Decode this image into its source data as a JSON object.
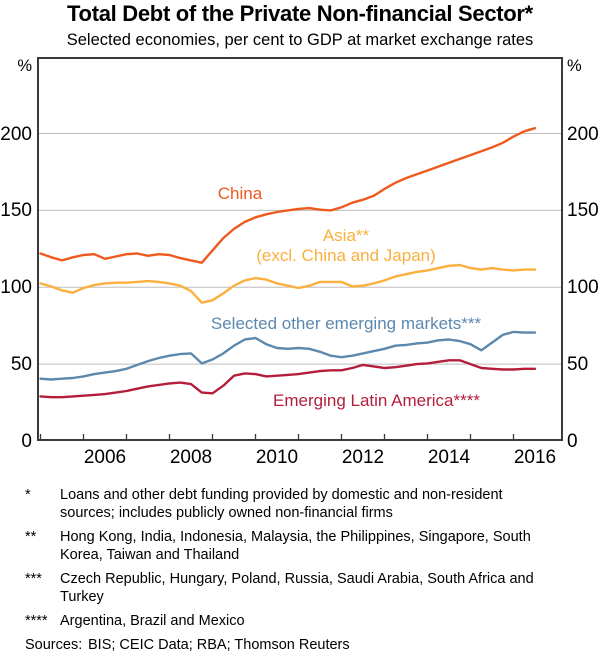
{
  "title": "Total Debt of the Private Non-financial Sector*",
  "subtitle": "Selected economies, per cent to GDP at market exchange rates",
  "chart_data": {
    "type": "line",
    "title": "Total Debt of the Private Non-financial Sector",
    "xlabel": "",
    "ylabel": "per cent to GDP",
    "y_unit": "%",
    "x_start": 2005.0,
    "x_step": 0.25,
    "x_axis": {
      "min": 2004.9,
      "max": 2017.1,
      "tick_years": [
        2005,
        2006,
        2007,
        2008,
        2009,
        2010,
        2011,
        2012,
        2013,
        2014,
        2015,
        2016
      ],
      "label_years": [
        2006,
        2008,
        2010,
        2012,
        2014,
        2016
      ]
    },
    "y_axis": {
      "min": 0,
      "max": 250,
      "ticks": [
        0,
        50,
        100,
        150,
        200
      ],
      "gridlines": [
        50,
        100,
        150,
        200
      ],
      "grid": true
    },
    "legend_position": "inline-labels",
    "series": [
      {
        "name": "china",
        "label": "China",
        "color": "#EE5A1E",
        "values": [
          122,
          119.5,
          117.5,
          119.5,
          121,
          121.5,
          118.5,
          120,
          121.5,
          122,
          120.5,
          121.5,
          121,
          119,
          117.5,
          116,
          124,
          132,
          138,
          142.5,
          145.5,
          147.5,
          149,
          150,
          151,
          151.5,
          150.5,
          150,
          152,
          155,
          157,
          159.5,
          164,
          168,
          171,
          173.5,
          176,
          178.5,
          181,
          183.5,
          186,
          188.5,
          191,
          194,
          198,
          201.5,
          203.5
        ]
      },
      {
        "name": "asia-excl-china-japan",
        "label_line1": "Asia**",
        "label_line2": "(excl. China and Japan)",
        "color": "#FBAF3C",
        "values": [
          102.5,
          100.5,
          98,
          96.5,
          99.5,
          101.5,
          102.5,
          103,
          103,
          103.5,
          104,
          103.5,
          102.5,
          101,
          97.5,
          90,
          91.5,
          96,
          101,
          104.5,
          106,
          105,
          102.5,
          101,
          99.5,
          101,
          103.5,
          103.5,
          103.5,
          100.5,
          101,
          102.5,
          104.5,
          107,
          108.5,
          110,
          111,
          112.5,
          114,
          114.5,
          112.5,
          111.5,
          112.5,
          111.5,
          111,
          111.5,
          111.5
        ]
      },
      {
        "name": "selected-other-emerging-markets",
        "label": "Selected other emerging markets***",
        "color": "#5C88AE",
        "values": [
          40.5,
          40,
          40.5,
          41,
          42,
          43.5,
          44.5,
          45.5,
          47,
          49.5,
          52,
          54,
          55.5,
          56.5,
          57,
          50.5,
          53,
          57,
          62,
          66,
          67,
          63,
          60.5,
          60,
          60.5,
          60,
          58,
          55.5,
          54.5,
          55.5,
          57,
          58.5,
          60,
          62,
          62.5,
          63.5,
          64,
          65.5,
          66,
          65,
          63,
          59,
          64,
          69,
          71,
          70.5,
          70.5
        ]
      },
      {
        "name": "emerging-latin-america",
        "label": "Emerging Latin America****",
        "color": "#B41E3C",
        "values": [
          29,
          28.5,
          28.5,
          29,
          29.5,
          30,
          30.5,
          31.5,
          32.5,
          34,
          35.5,
          36.5,
          37.5,
          38,
          37,
          31.5,
          31,
          36,
          42.5,
          44,
          43.5,
          42,
          42.5,
          43,
          43.5,
          44.5,
          45.5,
          46,
          46,
          47.5,
          49.5,
          48.5,
          47.5,
          48,
          49,
          50,
          50.5,
          51.5,
          52.5,
          52.5,
          50,
          47.5,
          47,
          46.5,
          46.5,
          47,
          47
        ]
      }
    ]
  },
  "footnotes": [
    {
      "marker": "*",
      "text": "Loans and other debt funding provided by domestic and non-resident sources; includes publicly owned non-financial firms"
    },
    {
      "marker": "**",
      "text": "Hong Kong, India, Indonesia, Malaysia, the Philippines, Singapore, South Korea, Taiwan and Thailand"
    },
    {
      "marker": "***",
      "text": "Czech Republic, Hungary, Poland, Russia, Saudi Arabia, South Africa and Turkey"
    },
    {
      "marker": "****",
      "text": "Argentina, Brazil and Mexico"
    }
  ],
  "sources": {
    "label": "Sources:",
    "text": "BIS; CEIC Data; RBA; Thomson Reuters"
  }
}
